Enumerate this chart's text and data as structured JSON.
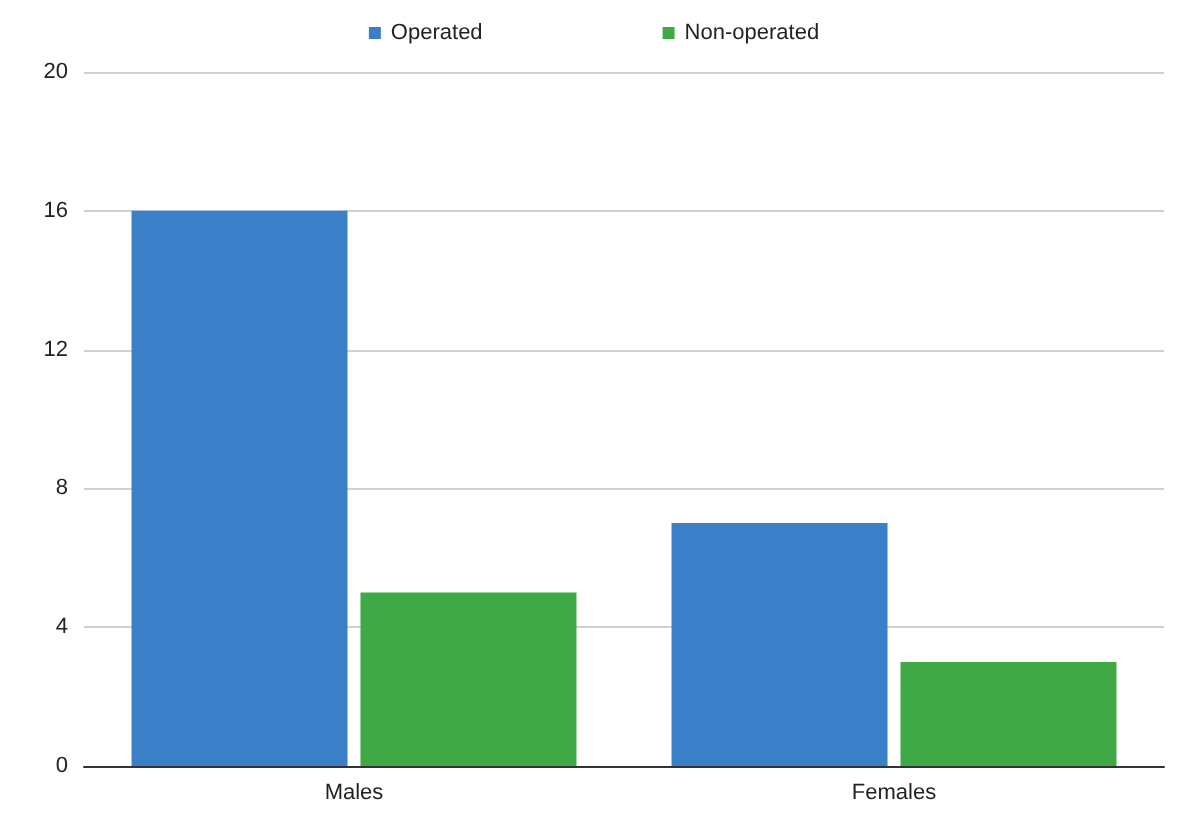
{
  "chart_data": {
    "type": "bar",
    "categories": [
      "Males",
      "Females"
    ],
    "series": [
      {
        "name": "Operated",
        "color": "#3a80c9",
        "values": [
          16,
          7
        ]
      },
      {
        "name": "Non-operated",
        "color": "#3faa45",
        "values": [
          5,
          3
        ]
      }
    ],
    "ylim": [
      0,
      20
    ],
    "yticks": [
      0,
      4,
      8,
      12,
      16,
      20
    ],
    "grid": "y",
    "legend": "top"
  }
}
